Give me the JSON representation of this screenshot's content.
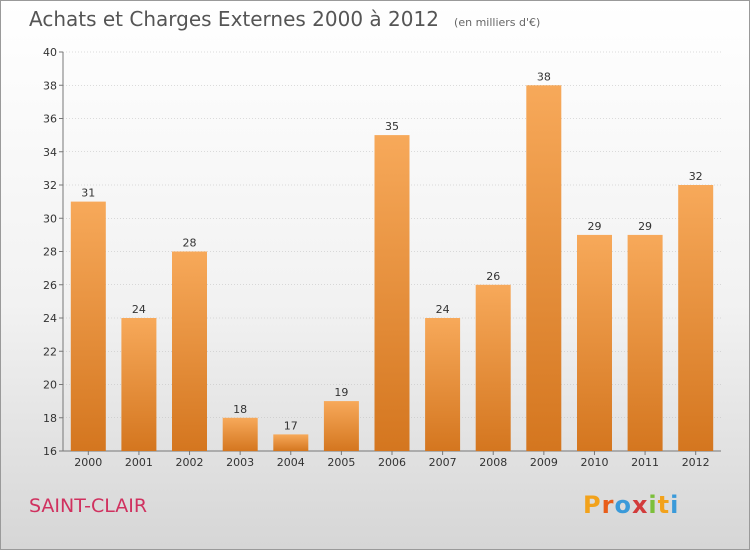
{
  "header": {
    "title": "Achats et Charges Externes 2000 à 2012",
    "subtitle": "(en milliers d'€)"
  },
  "footer": {
    "city": "SAINT-CLAIR",
    "brand_letters": [
      "P",
      "r",
      "o",
      "x",
      "i",
      "t",
      "i"
    ],
    "brand_colors": [
      "#f2a21b",
      "#e85d1a",
      "#3a9ad9",
      "#d23c3c",
      "#7cbf3a",
      "#f2a21b",
      "#3a9ad9"
    ]
  },
  "colors": {
    "bar_top": "#f7a95a",
    "bar_bottom": "#d4761f",
    "grid": "#bbbbbb",
    "axis": "#777777"
  },
  "chart_data": {
    "type": "bar",
    "title": "Achats et Charges Externes 2000 à 2012",
    "subtitle": "(en milliers d'€)",
    "categories": [
      "2000",
      "2001",
      "2002",
      "2003",
      "2004",
      "2005",
      "2006",
      "2007",
      "2008",
      "2009",
      "2010",
      "2011",
      "2012"
    ],
    "values": [
      31,
      24,
      28,
      18,
      17,
      19,
      35,
      24,
      26,
      38,
      29,
      29,
      32
    ],
    "ylim": [
      16,
      40
    ],
    "yticks": [
      16,
      18,
      20,
      22,
      24,
      26,
      28,
      30,
      32,
      34,
      36,
      38,
      40
    ],
    "grid": true
  }
}
